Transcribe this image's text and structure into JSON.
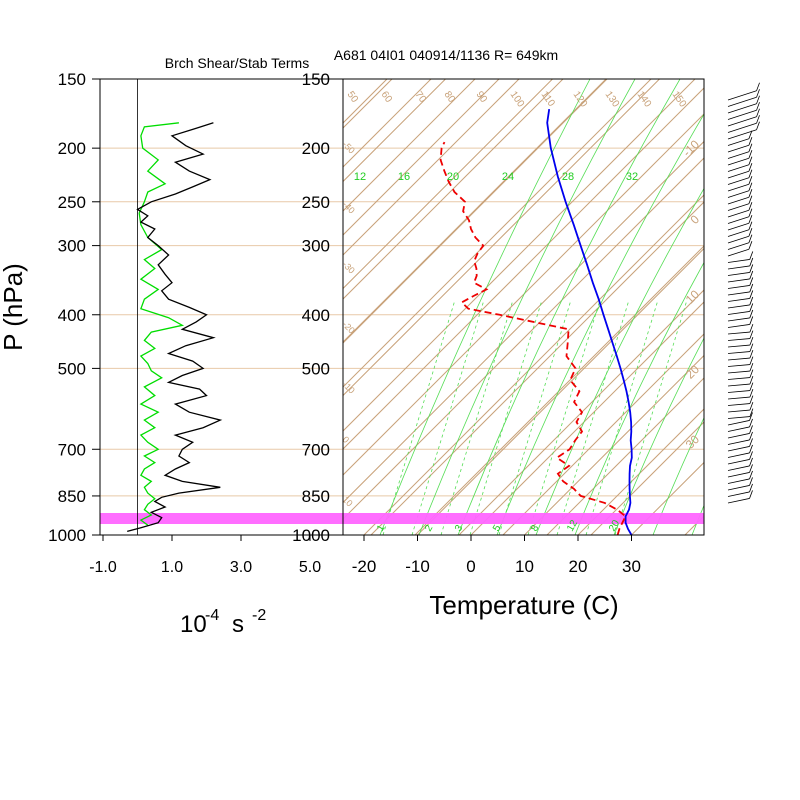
{
  "colors": {
    "isotherm": "#C8A27A",
    "mixing_ratio": "#55DD55",
    "temperature": "#0000EE",
    "dewpoint": "#EE0000",
    "highlight": "#FF66FF",
    "shear_term": "#00DD00",
    "stab_term": "#000000",
    "pressure_grid": "#E8C9A8"
  },
  "shear_panel": {
    "title": "Brch Shear/Stab Terms",
    "units_base": "10",
    "units_exp": "-4",
    "units_unit": "s",
    "units_unit_exp": "-2"
  },
  "skewt_panel": {
    "title": "A681 04I01 040914/1136 R= 649km",
    "xlabel": "Temperature (C)"
  },
  "ylabel": "P (hPa)",
  "chart_data": [
    {
      "type": "line",
      "title": "Brch Shear/Stab Terms",
      "xlabel": "10^-4 s^-2",
      "ylabel": "P (hPa)",
      "xlim": [
        -1.0,
        5.0
      ],
      "ylim": [
        1000,
        150
      ],
      "y_scale": "log",
      "x_ticks": [
        "-1.0",
        "1.0",
        "3.0",
        "5.0"
      ],
      "y_ticks": [
        "150",
        "200",
        "250",
        "300",
        "400",
        "500",
        "700",
        "850",
        "1000"
      ],
      "series": [
        {
          "color": "#00DD00",
          "p": [
            180,
            183,
            190,
            200,
            210,
            220,
            232,
            240,
            250,
            262,
            275,
            290,
            305,
            318,
            330,
            345,
            360,
            375,
            390,
            405,
            418,
            430,
            445,
            460,
            475,
            490,
            505,
            520,
            540,
            560,
            580,
            600,
            620,
            640,
            660,
            680,
            700,
            720,
            740,
            760,
            780,
            800,
            820,
            840,
            860,
            880,
            900,
            920,
            940,
            960
          ],
          "values": [
            1.2,
            0.2,
            0.1,
            0.15,
            0.6,
            0.3,
            0.8,
            0.3,
            0.2,
            0.05,
            0.1,
            0.3,
            0.7,
            0.2,
            0.5,
            0.1,
            0.6,
            0.2,
            0.1,
            0.9,
            1.3,
            0.4,
            0.2,
            0.5,
            0.1,
            0.3,
            0.4,
            0.7,
            0.2,
            0.5,
            0.1,
            0.6,
            0.2,
            0.5,
            0.1,
            0.3,
            0.6,
            0.2,
            0.5,
            0.2,
            0.1,
            0.4,
            0.2,
            0.3,
            0.5,
            0.3,
            0.2,
            0.4,
            0.1,
            0.3
          ]
        },
        {
          "color": "#000000",
          "p": [
            180,
            185,
            190,
            198,
            205,
            212,
            220,
            228,
            235,
            242,
            250,
            258,
            265,
            272,
            280,
            290,
            300,
            312,
            325,
            338,
            350,
            362,
            375,
            388,
            400,
            412,
            425,
            440,
            455,
            470,
            485,
            500,
            515,
            530,
            545,
            560,
            580,
            600,
            620,
            640,
            660,
            680,
            700,
            720,
            740,
            760,
            780,
            800,
            820,
            840,
            855,
            870,
            890,
            910,
            930,
            950,
            970,
            985
          ],
          "values": [
            2.2,
            1.6,
            1.0,
            1.4,
            1.9,
            1.1,
            1.5,
            2.1,
            1.6,
            1.1,
            0.4,
            0.0,
            0.3,
            0.1,
            0.5,
            0.3,
            0.6,
            0.9,
            0.6,
            0.8,
            1.0,
            0.7,
            0.9,
            1.5,
            2.0,
            1.7,
            1.3,
            2.2,
            1.4,
            0.9,
            1.6,
            1.9,
            1.3,
            0.9,
            1.8,
            2.0,
            1.1,
            1.5,
            2.4,
            1.9,
            1.1,
            1.6,
            1.3,
            1.2,
            1.5,
            1.1,
            0.8,
            1.3,
            2.4,
            1.2,
            0.7,
            0.5,
            0.8,
            0.4,
            0.7,
            0.6,
            0.1,
            -0.3
          ]
        }
      ],
      "highlight_band_p": [
        950,
        1000
      ]
    },
    {
      "type": "line",
      "title": "A681 04I01 040914/1136 R= 649km",
      "xlabel": "Temperature (C)",
      "ylabel": "P (hPa)",
      "ylim": [
        1000,
        150
      ],
      "y_scale": "log",
      "x_ticks": [
        "-20",
        "-10",
        "0",
        "10",
        "20",
        "30"
      ],
      "y_ticks": [
        "150",
        "200",
        "250",
        "300",
        "400",
        "500",
        "700",
        "850",
        "1000"
      ],
      "isotherm_labels": [
        "-100",
        "-90",
        "-80",
        "-70",
        "-60",
        "-50",
        "-40",
        "-30",
        "-20",
        "-10",
        "0",
        "10",
        "20",
        "30"
      ],
      "theta_labels": [
        "50",
        "60",
        "70",
        "80",
        "90",
        "100",
        "110",
        "120",
        "130",
        "140",
        "150"
      ],
      "mixing_ratio_labels": [
        "1",
        "2",
        "3",
        "5",
        "8",
        "12",
        "20",
        "12",
        "16",
        "20",
        "24",
        "28",
        "32"
      ],
      "series": [
        {
          "name": "temperature",
          "color": "#0000EE",
          "p": [
            1000,
            975,
            950,
            925,
            900,
            875,
            850,
            825,
            800,
            775,
            750,
            725,
            700,
            675,
            650,
            625,
            600,
            575,
            550,
            525,
            500,
            475,
            450,
            425,
            400,
            375,
            350,
            325,
            300,
            275,
            250,
            225,
            200,
            180,
            170
          ],
          "t": [
            30,
            28.2,
            26.6,
            25.4,
            24.8,
            23.8,
            22.4,
            21.0,
            19.6,
            18.2,
            16.8,
            15.6,
            14.0,
            12.2,
            10.6,
            8.8,
            6.8,
            4.6,
            2.2,
            -0.4,
            -3.2,
            -6.2,
            -9.4,
            -12.8,
            -16.4,
            -20.2,
            -24.4,
            -28.8,
            -33.6,
            -38.8,
            -44.6,
            -50.8,
            -57.4,
            -62.8,
            -65.0
          ]
        },
        {
          "name": "dewpoint",
          "color": "#EE0000",
          "p": [
            1000,
            975,
            950,
            925,
            900,
            875,
            850,
            825,
            800,
            775,
            750,
            725,
            700,
            675,
            650,
            625,
            600,
            575,
            550,
            525,
            500,
            475,
            450,
            425,
            400,
            390,
            380,
            370,
            360,
            350,
            340,
            330,
            320,
            310,
            300,
            290,
            280,
            270,
            260,
            250,
            240,
            230,
            220,
            210,
            200,
            195
          ],
          "t": [
            27.4,
            26.6,
            26.0,
            25.4,
            22.6,
            19.0,
            13.2,
            10.6,
            7.2,
            4.8,
            5.4,
            1.6,
            2.4,
            1.8,
            1.4,
            -1.4,
            -2.2,
            -5.6,
            -6.6,
            -10.4,
            -11.6,
            -15.6,
            -17.8,
            -20.2,
            -35.8,
            -42.8,
            -45.2,
            -44.2,
            -43.0,
            -46.6,
            -47.4,
            -48.8,
            -50.6,
            -51.4,
            -51.8,
            -54.8,
            -57.2,
            -59.2,
            -62.0,
            -63.4,
            -67.2,
            -70.2,
            -73.0,
            -75.8,
            -77.8,
            -78.4
          ]
        }
      ],
      "highlight_band_p": [
        950,
        1000
      ]
    }
  ]
}
